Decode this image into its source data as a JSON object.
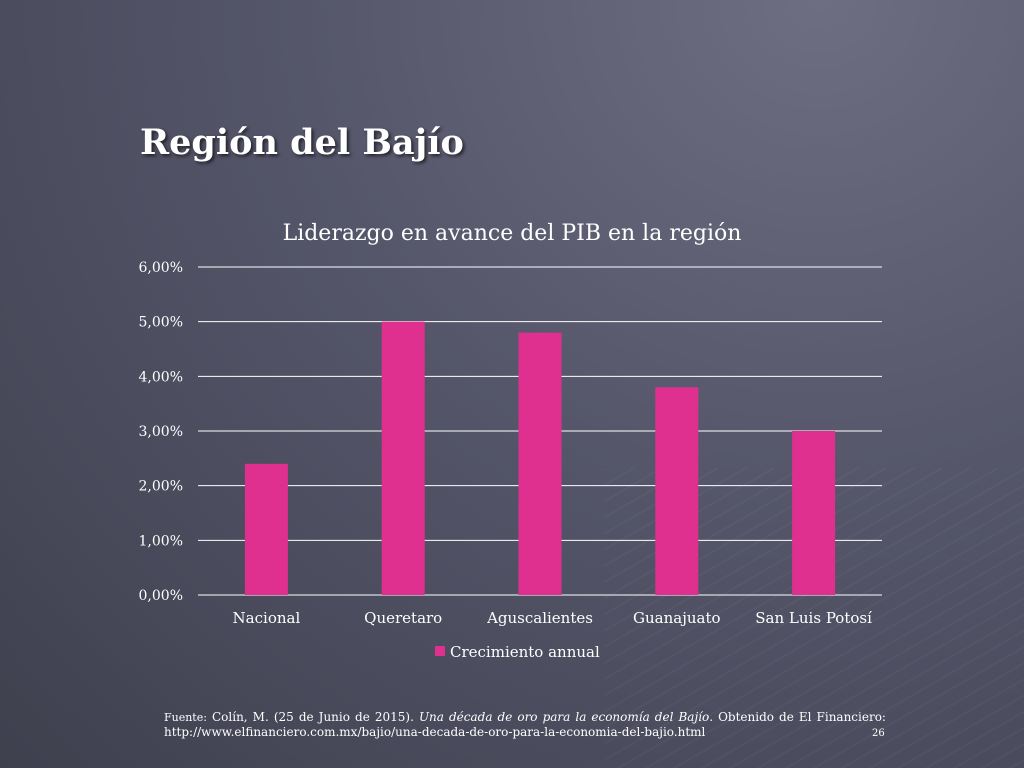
{
  "slide": {
    "title": "Región del Bajío",
    "page_number": "26"
  },
  "source": {
    "label": "Fuente:",
    "citation_start": "Colín, M. (25 de Junio de 2015).",
    "book_title": "Una década de oro para la economía del Bajío",
    "citation_end": ". Obtenido de El Financiero: http://www.elfinanciero.com.mx/bajio/una-decada-de-oro-para-la-economia-del-bajio.html"
  },
  "colors": {
    "bar": "#e0308f",
    "gridline": "#ffffff"
  },
  "chart_data": {
    "type": "bar",
    "title": "Liderazgo en avance del PIB en la región",
    "categories": [
      "Nacional",
      "Queretaro",
      "Aguscalientes",
      "Guanajuato",
      "San Luis Potosí"
    ],
    "series": [
      {
        "name": "Crecimiento annual",
        "values": [
          2.4,
          5.0,
          4.8,
          3.8,
          3.0
        ]
      }
    ],
    "yticks": [
      "0,00%",
      "1,00%",
      "2,00%",
      "3,00%",
      "4,00%",
      "5,00%",
      "6,00%"
    ],
    "ylim": [
      0,
      6
    ],
    "grid": true,
    "legend_position": "bottom"
  }
}
